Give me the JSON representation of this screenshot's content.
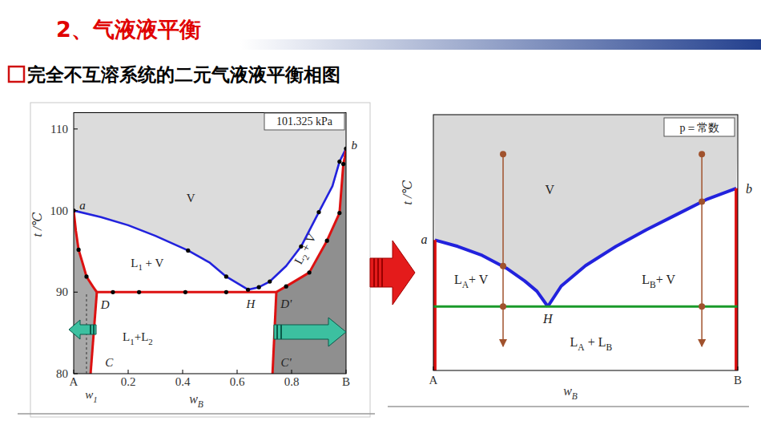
{
  "slide": {
    "title": "2、气液液平衡",
    "subtitle": "完全不互溶系统的二元气液液平衡相图"
  },
  "chart_data": [
    {
      "type": "line",
      "xlabel": "wB",
      "ylabel": "t /℃",
      "note": "101.325 kPa",
      "xlim": [
        0,
        1
      ],
      "ylim": [
        80,
        112
      ],
      "xticks": [
        {
          "value": 0,
          "label": "A"
        },
        0.2,
        0.4,
        0.6,
        0.8,
        {
          "value": 1,
          "label": "B"
        }
      ],
      "yticks": [
        80,
        90,
        100,
        110
      ],
      "grid": false,
      "series": [
        {
          "type": "line",
          "color": "#2222dd",
          "line_style": "solid",
          "x": [
            0,
            0.1,
            0.2,
            0.3,
            0.42,
            0.5,
            0.56,
            0.64
          ],
          "values": [
            100,
            99.2,
            98.2,
            96.9,
            95.1,
            93.6,
            91.9,
            90.3
          ]
        },
        {
          "type": "line",
          "color": "#2222dd",
          "line_style": "solid",
          "x": [
            0.64,
            0.68,
            0.72,
            0.78,
            0.835,
            0.9,
            0.95,
            0.976,
            1
          ],
          "values": [
            90.3,
            90.6,
            91.3,
            93.2,
            95.6,
            99.8,
            103,
            106,
            107.6
          ]
        },
        {
          "type": "line",
          "color": "#dd1111",
          "line_style": "solid",
          "x": [
            0,
            0.008,
            0.018,
            0.035,
            0.047,
            0.07,
            0.085
          ],
          "values": [
            100,
            97.5,
            95.2,
            93.3,
            91.9,
            90.7,
            90
          ]
        },
        {
          "type": "line",
          "color": "#dd1111",
          "line_style": "solid",
          "x": [
            0.085,
            0.062
          ],
          "values": [
            90,
            80
          ]
        },
        {
          "type": "line",
          "color": "#dd1111",
          "line_style": "solid",
          "x": [
            1,
            0.995,
            0.99,
            0.976,
            0.93,
            0.865,
            0.78,
            0.744
          ],
          "values": [
            107.6,
            106.5,
            105.7,
            99.7,
            96.3,
            92.4,
            90.7,
            90
          ]
        },
        {
          "type": "line",
          "color": "#dd1111",
          "line_style": "solid",
          "x": [
            0.744,
            0.73
          ],
          "values": [
            90,
            80
          ]
        },
        {
          "type": "line",
          "color": "#dd1111",
          "line_style": "solid",
          "x": [
            0.085,
            0.744
          ],
          "values": [
            90,
            90
          ]
        },
        {
          "type": "scatter",
          "color": "#000000",
          "marker": "circle",
          "x": [
            0,
            0.018,
            0.047,
            0.144,
            0.24,
            0.41,
            0.56,
            0.42,
            0.56,
            0.64,
            0.68,
            0.72,
            0.78,
            0.835,
            0.865,
            0.9,
            0.93,
            0.976,
            0.976,
            0.99,
            1
          ],
          "values": [
            100,
            95.2,
            91.9,
            90,
            90,
            90,
            90,
            95.1,
            91.9,
            90.3,
            90.6,
            91.3,
            90.7,
            95.6,
            92.4,
            99.8,
            96.3,
            99.7,
            106,
            105.7,
            107.6
          ]
        }
      ],
      "annotations": [
        {
          "text": "V",
          "x": 0.43,
          "y": 101.5
        },
        {
          "text": "a",
          "x": 0.032,
          "y": 100.6
        },
        {
          "text": "b",
          "x": 1.03,
          "y": 108
        },
        {
          "text": "L1 + V",
          "x": 0.27,
          "y": 93.6
        },
        {
          "text": "L2 + V",
          "x": 0.85,
          "y": 95.3
        },
        {
          "text": "D",
          "x": 0.115,
          "y": 88.5
        },
        {
          "text": "H",
          "x": 0.65,
          "y": 88.6
        },
        {
          "text": "D'",
          "x": 0.78,
          "y": 88.6
        },
        {
          "text": "L1+L2",
          "x": 0.235,
          "y": 84.5
        },
        {
          "text": "C",
          "x": 0.13,
          "y": 81.4
        },
        {
          "text": "C'",
          "x": 0.78,
          "y": 81.4
        }
      ],
      "vlines": [
        {
          "x": 0.047,
          "ymax": 90,
          "label": "w1"
        }
      ]
    },
    {
      "type": "line",
      "xlabel": "wB",
      "ylabel": "t /℃",
      "note": "p＝常数",
      "xlim": [
        0,
        1
      ],
      "ylim": [
        0,
        100
      ],
      "xticks": [
        {
          "value": 0,
          "label": "A"
        },
        {
          "value": 1,
          "label": "B"
        }
      ],
      "yticks": [],
      "grid": false,
      "series": [
        {
          "type": "line",
          "color": "#2222dd",
          "line_style": "solid",
          "x": [
            0.005,
            0.08,
            0.16,
            0.24,
            0.3,
            0.34,
            0.376
          ],
          "values": [
            51,
            48.5,
            45,
            40,
            35,
            31,
            25
          ]
        },
        {
          "type": "line",
          "color": "#2222dd",
          "line_style": "solid",
          "x": [
            0.376,
            0.42,
            0.5,
            0.6,
            0.7,
            0.8,
            0.9,
            0.995
          ],
          "values": [
            25,
            33,
            41,
            48.5,
            55,
            61,
            67,
            71.2
          ]
        },
        {
          "type": "line",
          "color": "#dd1111",
          "line_style": "solid",
          "x": [
            0.005,
            0.005
          ],
          "values": [
            0,
            51
          ]
        },
        {
          "type": "line",
          "color": "#dd1111",
          "line_style": "solid",
          "x": [
            0.995,
            0.995
          ],
          "values": [
            0,
            71.2
          ]
        },
        {
          "type": "line",
          "color": "#1a9a2a",
          "line_style": "solid",
          "x": [
            0,
            1
          ],
          "values": [
            25,
            25
          ]
        },
        {
          "type": "line",
          "color": "#a0522d",
          "line_style": "arrow",
          "x": [
            0.229,
            0.229
          ],
          "values": [
            84.6,
            9.4
          ]
        },
        {
          "type": "line",
          "color": "#a0522d",
          "line_style": "arrow",
          "x": [
            0.882,
            0.882
          ],
          "values": [
            84.6,
            9.4
          ]
        },
        {
          "type": "scatter",
          "color": "#a0522d",
          "marker": "circle",
          "x": [
            0.229,
            0.229,
            0.229,
            0.882,
            0.882,
            0.882
          ],
          "values": [
            84.6,
            40.8,
            25,
            84.6,
            66,
            25
          ]
        }
      ],
      "annotations": [
        {
          "text": "V",
          "x": 0.382,
          "y": 70.5
        },
        {
          "text": "a",
          "x": -0.03,
          "y": 51
        },
        {
          "text": "b",
          "x": 1.037,
          "y": 71
        },
        {
          "text": "LA+ V",
          "x": 0.124,
          "y": 35.4
        },
        {
          "text": "LB+ V",
          "x": 0.74,
          "y": 35.4
        },
        {
          "text": "LA + LB",
          "x": 0.518,
          "y": 11
        },
        {
          "text": "H",
          "x": 0.376,
          "y": 20
        }
      ]
    }
  ]
}
